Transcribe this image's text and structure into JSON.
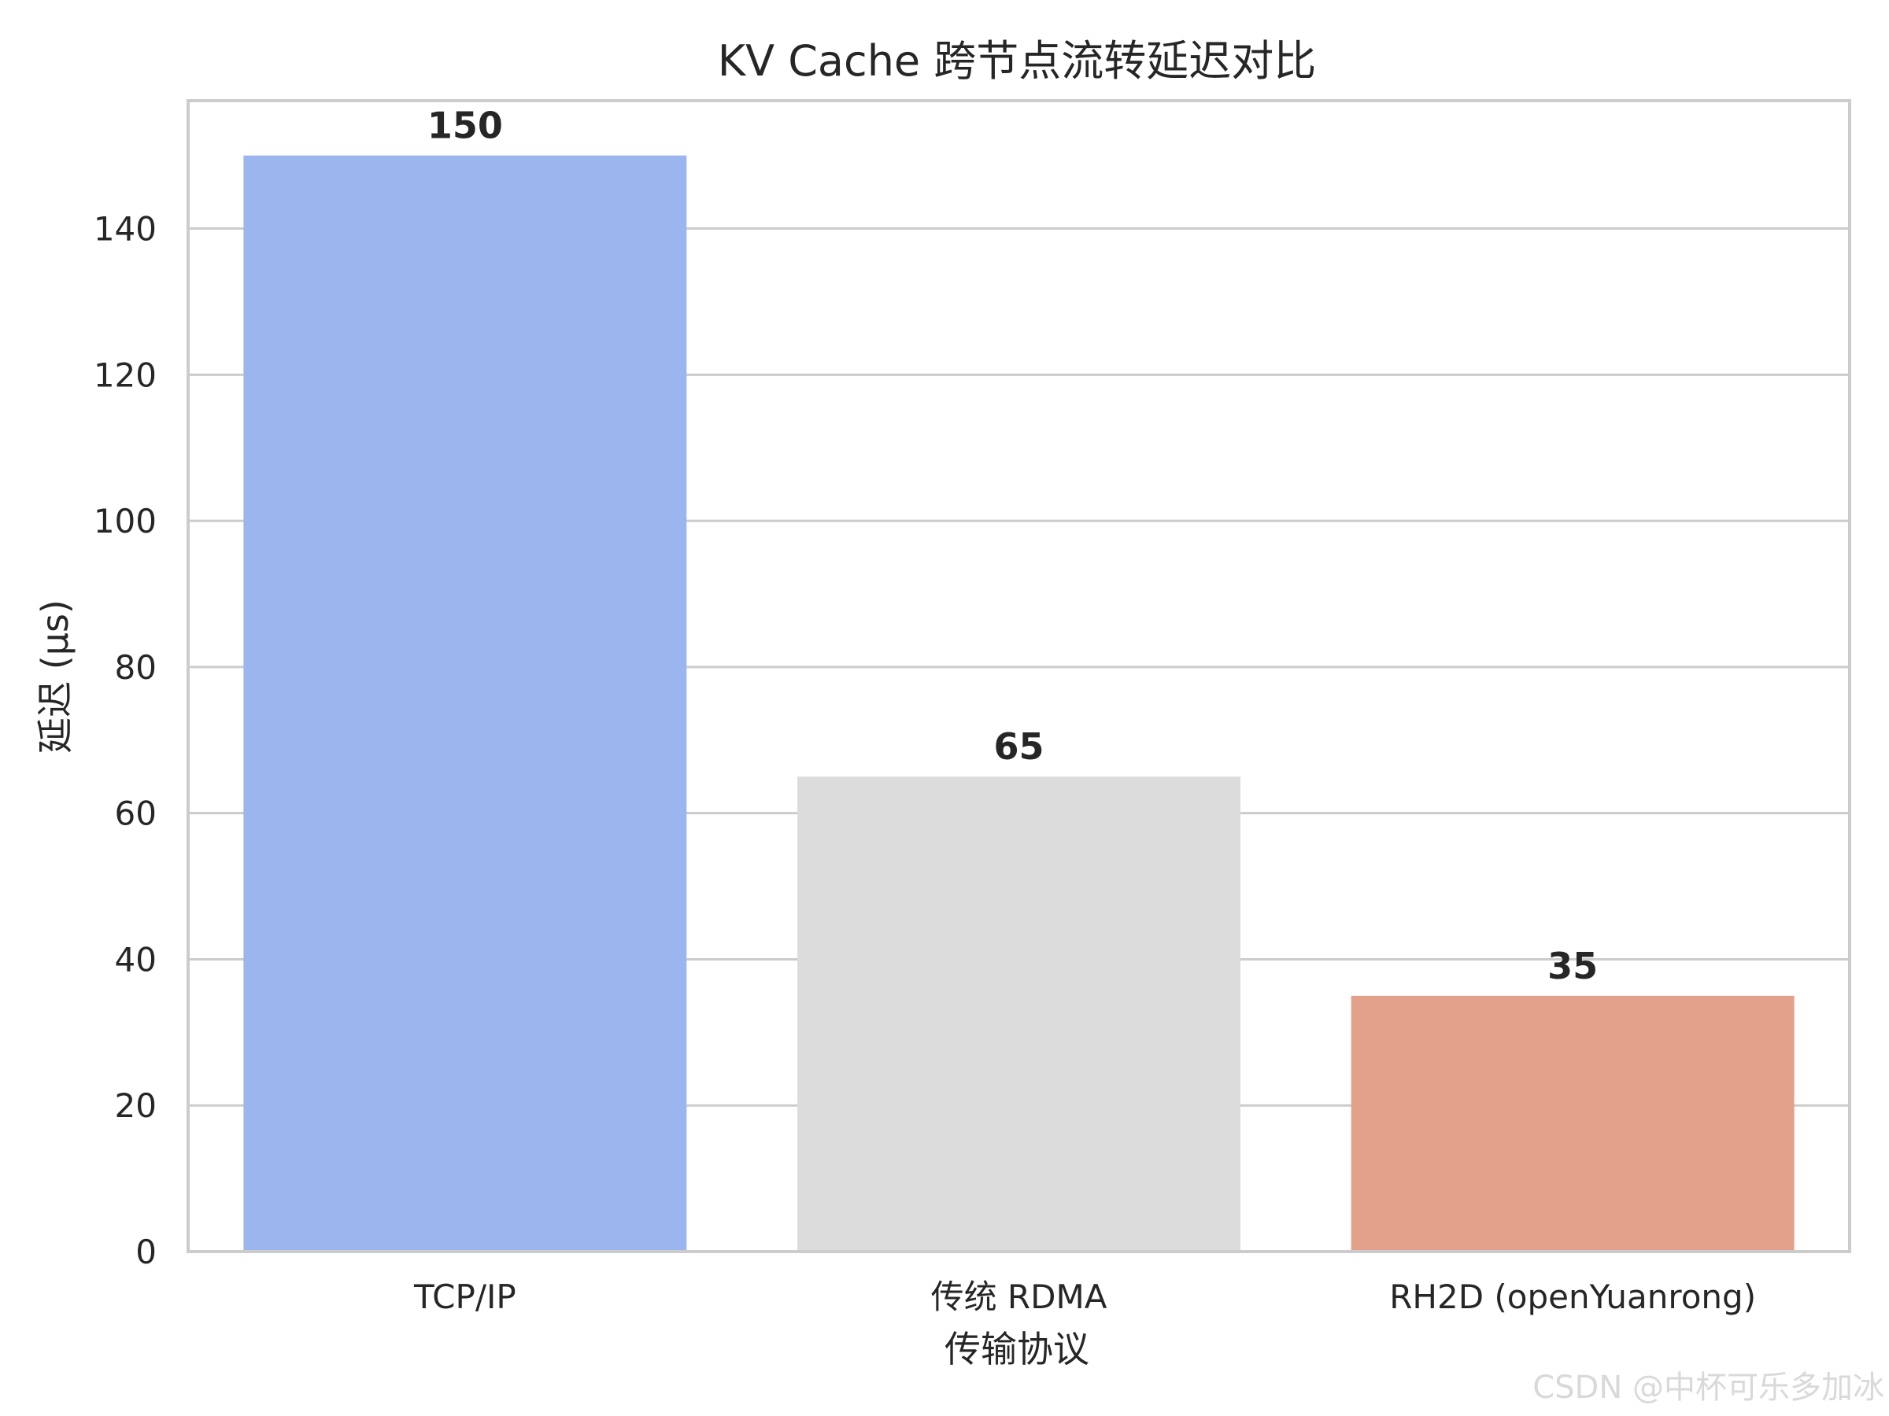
{
  "chart_data": {
    "type": "bar",
    "title": "KV Cache 跨节点流转延迟对比",
    "xlabel": "传输协议",
    "ylabel": "延迟 (μs)",
    "categories": [
      "TCP/IP",
      "传统 RDMA",
      "RH2D (openYuanrong)"
    ],
    "values": [
      150,
      65,
      35
    ],
    "value_labels": [
      "150",
      "65",
      "35"
    ],
    "colors": [
      "#9bb5ee",
      "#dcdcdc",
      "#e3a08b"
    ],
    "ylim": [
      0,
      157.5
    ],
    "yticks": [
      0,
      20,
      40,
      60,
      80,
      100,
      120,
      140
    ],
    "grid": true,
    "grid_color": "#cccccc",
    "frame_color": "#cccccc",
    "background": "#ffffff"
  },
  "watermark": "CSDN @中杯可乐多加冰"
}
